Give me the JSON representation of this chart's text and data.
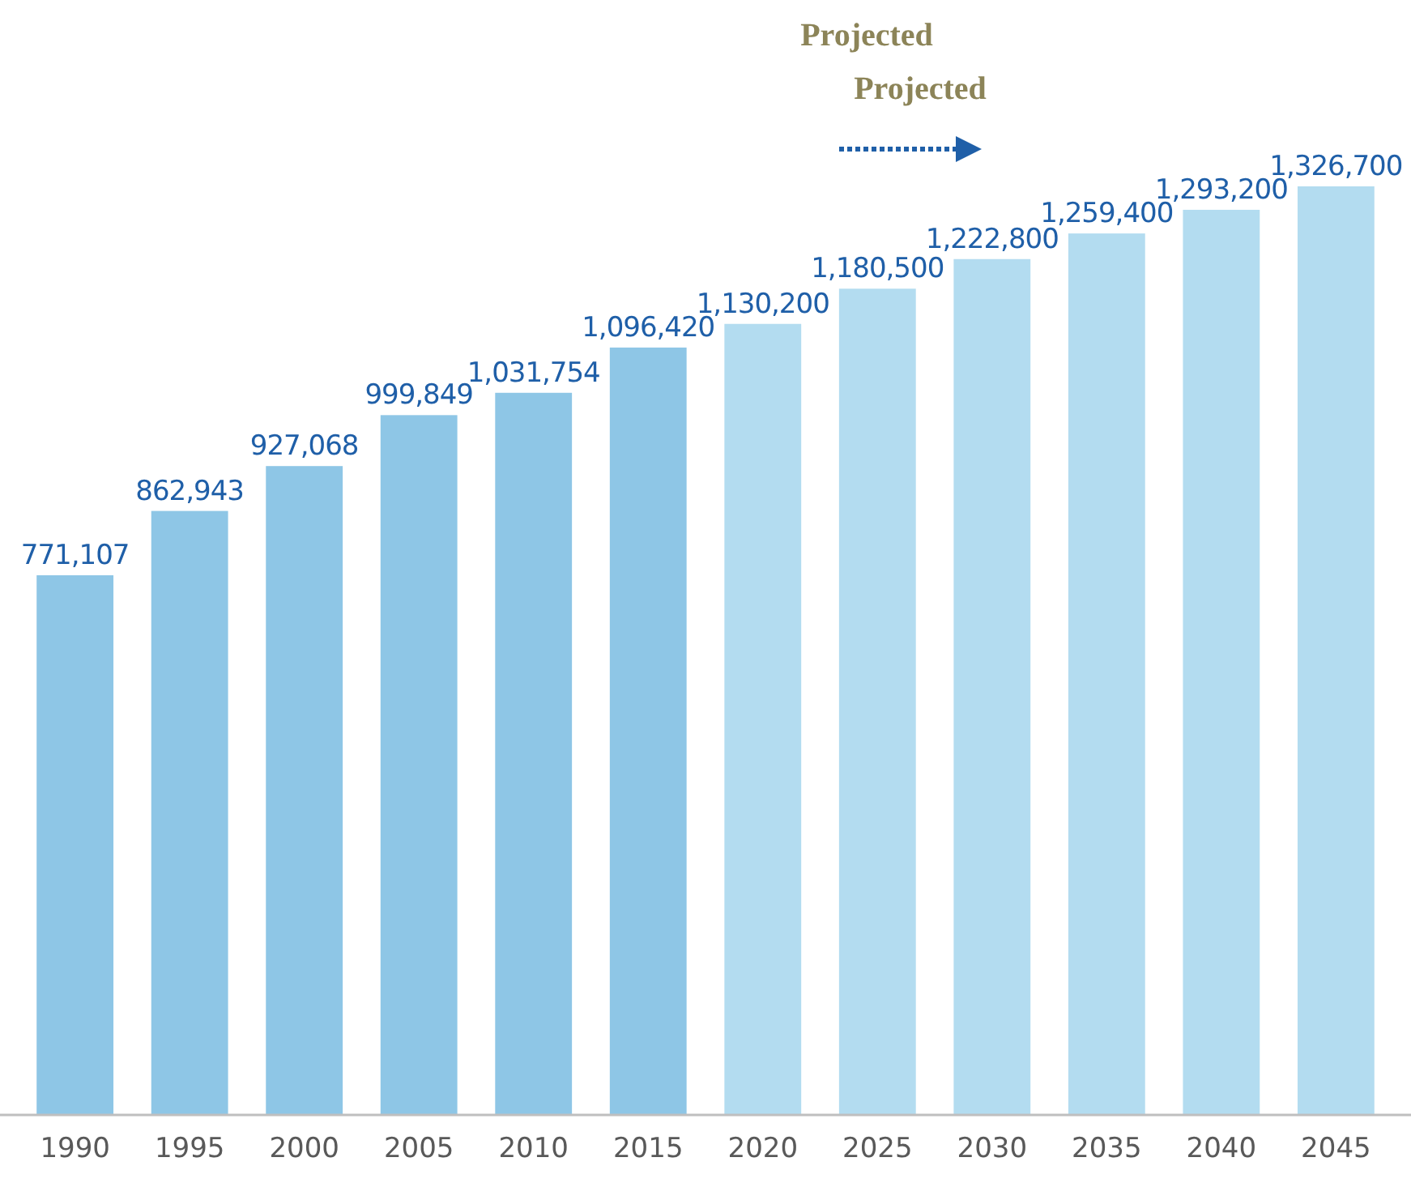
{
  "chart_data": {
    "type": "bar",
    "categories": [
      "1990",
      "1995",
      "2000",
      "2005",
      "2010",
      "2015",
      "2020",
      "2025",
      "2030",
      "2035",
      "2040",
      "2045"
    ],
    "values": [
      771107,
      862943,
      927068,
      999849,
      1031754,
      1096420,
      1130200,
      1180500,
      1222800,
      1259400,
      1293200,
      1326700
    ],
    "colors": [
      "#8ec6e6",
      "#8ec6e6",
      "#8ec6e6",
      "#8ec6e6",
      "#8ec6e6",
      "#8ec6e6",
      "#b3dcf0",
      "#b3dcf0",
      "#b3dcf0",
      "#b3dcf0",
      "#b3dcf0",
      "#b3dcf0"
    ],
    "tick_labels": "x",
    "value_labels": [
      "771,107",
      "862,943",
      "927,068",
      "999,849",
      "1,031,754",
      "1,096,420",
      "1,130,200",
      "1,180,500",
      "1,222,800",
      "1,259,400",
      "1,293,200",
      "1,326,700"
    ],
    "annotations": [
      "Projected",
      "Projected"
    ]
  }
}
